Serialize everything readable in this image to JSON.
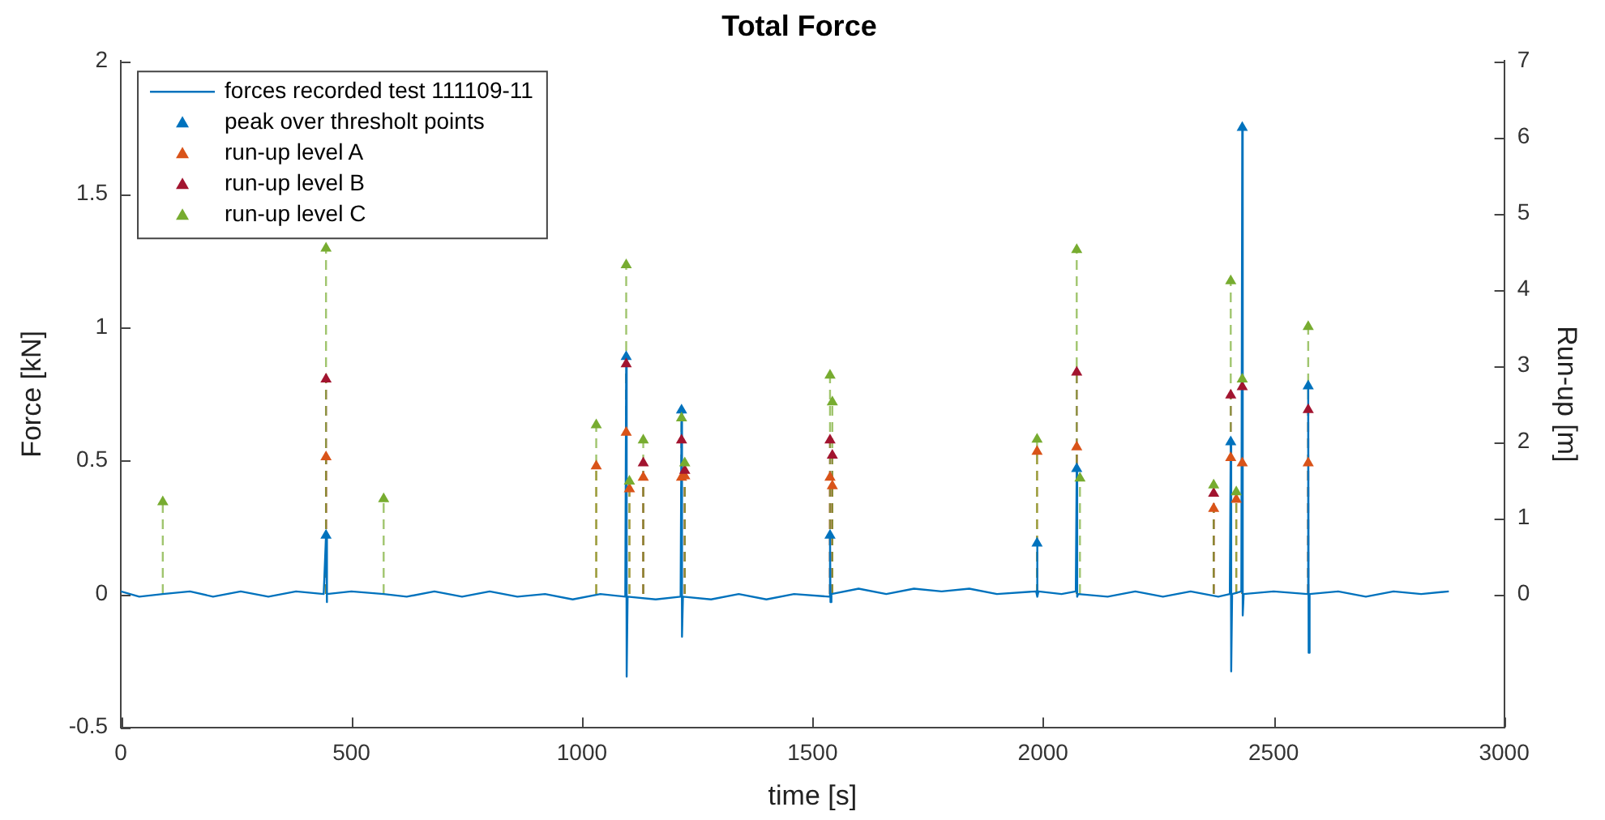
{
  "chart_data": {
    "type": "line",
    "title": "Total Force",
    "xlabel": "time [s]",
    "ylabel": "Force [kN]",
    "y2label": "Run-up [m]",
    "xlim": [
      0,
      3000
    ],
    "xticks": [
      0,
      500,
      1000,
      1500,
      2000,
      2500,
      3000
    ],
    "ylim": [
      -0.5,
      2
    ],
    "yticks": [
      -0.5,
      0,
      0.5,
      1,
      1.5,
      2
    ],
    "y2lim": [
      -1.75,
      7
    ],
    "y2ticks": [
      0,
      1,
      2,
      3,
      4,
      5,
      6,
      7
    ],
    "grid": false,
    "legend": "top left",
    "series": [
      {
        "name": "forces recorded test 111109-11",
        "type": "line",
        "color": "#0072bd",
        "marker": "none",
        "line_style": "solid",
        "x": [
          0,
          40,
          91,
          150,
          200,
          260,
          320,
          380,
          440,
          445,
          446,
          448,
          500,
          570,
          620,
          680,
          740,
          800,
          860,
          920,
          980,
          1040,
          1094,
          1096,
          1097,
          1099,
          1160,
          1214,
          1216,
          1217,
          1219,
          1280,
          1340,
          1400,
          1460,
          1536,
          1538,
          1539,
          1541,
          1600,
          1660,
          1720,
          1780,
          1840,
          1900,
          1985,
          1987,
          1988,
          1990,
          2040,
          2071,
          2073,
          2074,
          2076,
          2140,
          2200,
          2260,
          2320,
          2380,
          2405,
          2407,
          2408,
          2410,
          2430,
          2432,
          2433,
          2435,
          2500,
          2573,
          2575,
          2576,
          2578,
          2640,
          2700,
          2760,
          2820,
          2880
        ],
        "values": [
          0.01,
          -0.01,
          0,
          0.01,
          -0.01,
          0.01,
          -0.01,
          0.01,
          0,
          0.22,
          -0.03,
          0,
          0.01,
          0,
          -0.01,
          0.01,
          -0.01,
          0.01,
          -0.01,
          0,
          -0.02,
          0,
          -0.01,
          0.89,
          -0.31,
          -0.01,
          -0.02,
          -0.01,
          0.69,
          -0.16,
          -0.01,
          -0.02,
          0,
          -0.02,
          0,
          -0.01,
          0.22,
          -0.03,
          0,
          0.02,
          0,
          0.02,
          0.01,
          0.02,
          0,
          0.01,
          0.19,
          -0.01,
          0.01,
          0,
          0.01,
          0.47,
          -0.01,
          0,
          -0.01,
          0.01,
          -0.01,
          0.01,
          -0.01,
          0,
          0.57,
          -0.29,
          0,
          0.01,
          1.75,
          -0.08,
          0,
          0.01,
          0,
          0.78,
          -0.22,
          0,
          0.01,
          -0.01,
          0.01,
          0,
          0.01
        ]
      },
      {
        "name": "peak over thresholt points",
        "type": "scatter",
        "color": "#0072bd",
        "marker": "triangle",
        "x": [
          445,
          1096,
          1216,
          1538,
          1987,
          2073,
          2407,
          2432,
          2575
        ],
        "values": [
          0.22,
          0.89,
          0.69,
          0.22,
          0.19,
          0.47,
          0.57,
          1.75,
          0.78
        ]
      },
      {
        "name": "run-up level A",
        "type": "lollipop",
        "axis": "y2",
        "color": "#d95319",
        "marker": "triangle",
        "line_style": "dashed",
        "x": [
          445,
          1031,
          1096,
          1103,
          1133,
          1216,
          1223,
          1538,
          1543,
          1987,
          2073,
          2370,
          2407,
          2419,
          2432,
          2575
        ],
        "values": [
          1.8,
          1.68,
          2.12,
          1.38,
          1.53,
          1.53,
          1.55,
          1.53,
          1.42,
          1.87,
          1.93,
          1.12,
          1.79,
          1.24,
          1.72,
          1.72
        ]
      },
      {
        "name": "run-up level B",
        "type": "lollipop",
        "axis": "y2",
        "color": "#a2142f",
        "marker": "triangle",
        "line_style": "dashed",
        "x": [
          445,
          1096,
          1133,
          1216,
          1223,
          1538,
          1543,
          2073,
          2370,
          2407,
          2432,
          2575
        ],
        "values": [
          2.82,
          3.02,
          1.72,
          2.02,
          1.62,
          2.02,
          1.82,
          2.91,
          1.32,
          2.61,
          2.72,
          2.42
        ]
      },
      {
        "name": "run-up level C",
        "type": "lollipop",
        "axis": "y2",
        "color": "#77ac30",
        "marker": "triangle",
        "line_style": "dashed",
        "x": [
          91,
          445,
          570,
          1031,
          1096,
          1103,
          1133,
          1216,
          1223,
          1538,
          1543,
          1987,
          2073,
          2080,
          2370,
          2407,
          2419,
          2432,
          2575
        ],
        "values": [
          1.21,
          4.54,
          1.25,
          2.22,
          4.32,
          1.48,
          2.02,
          2.31,
          1.72,
          2.87,
          2.52,
          2.03,
          4.52,
          1.52,
          1.43,
          4.11,
          1.34,
          2.82,
          3.51
        ]
      }
    ]
  }
}
